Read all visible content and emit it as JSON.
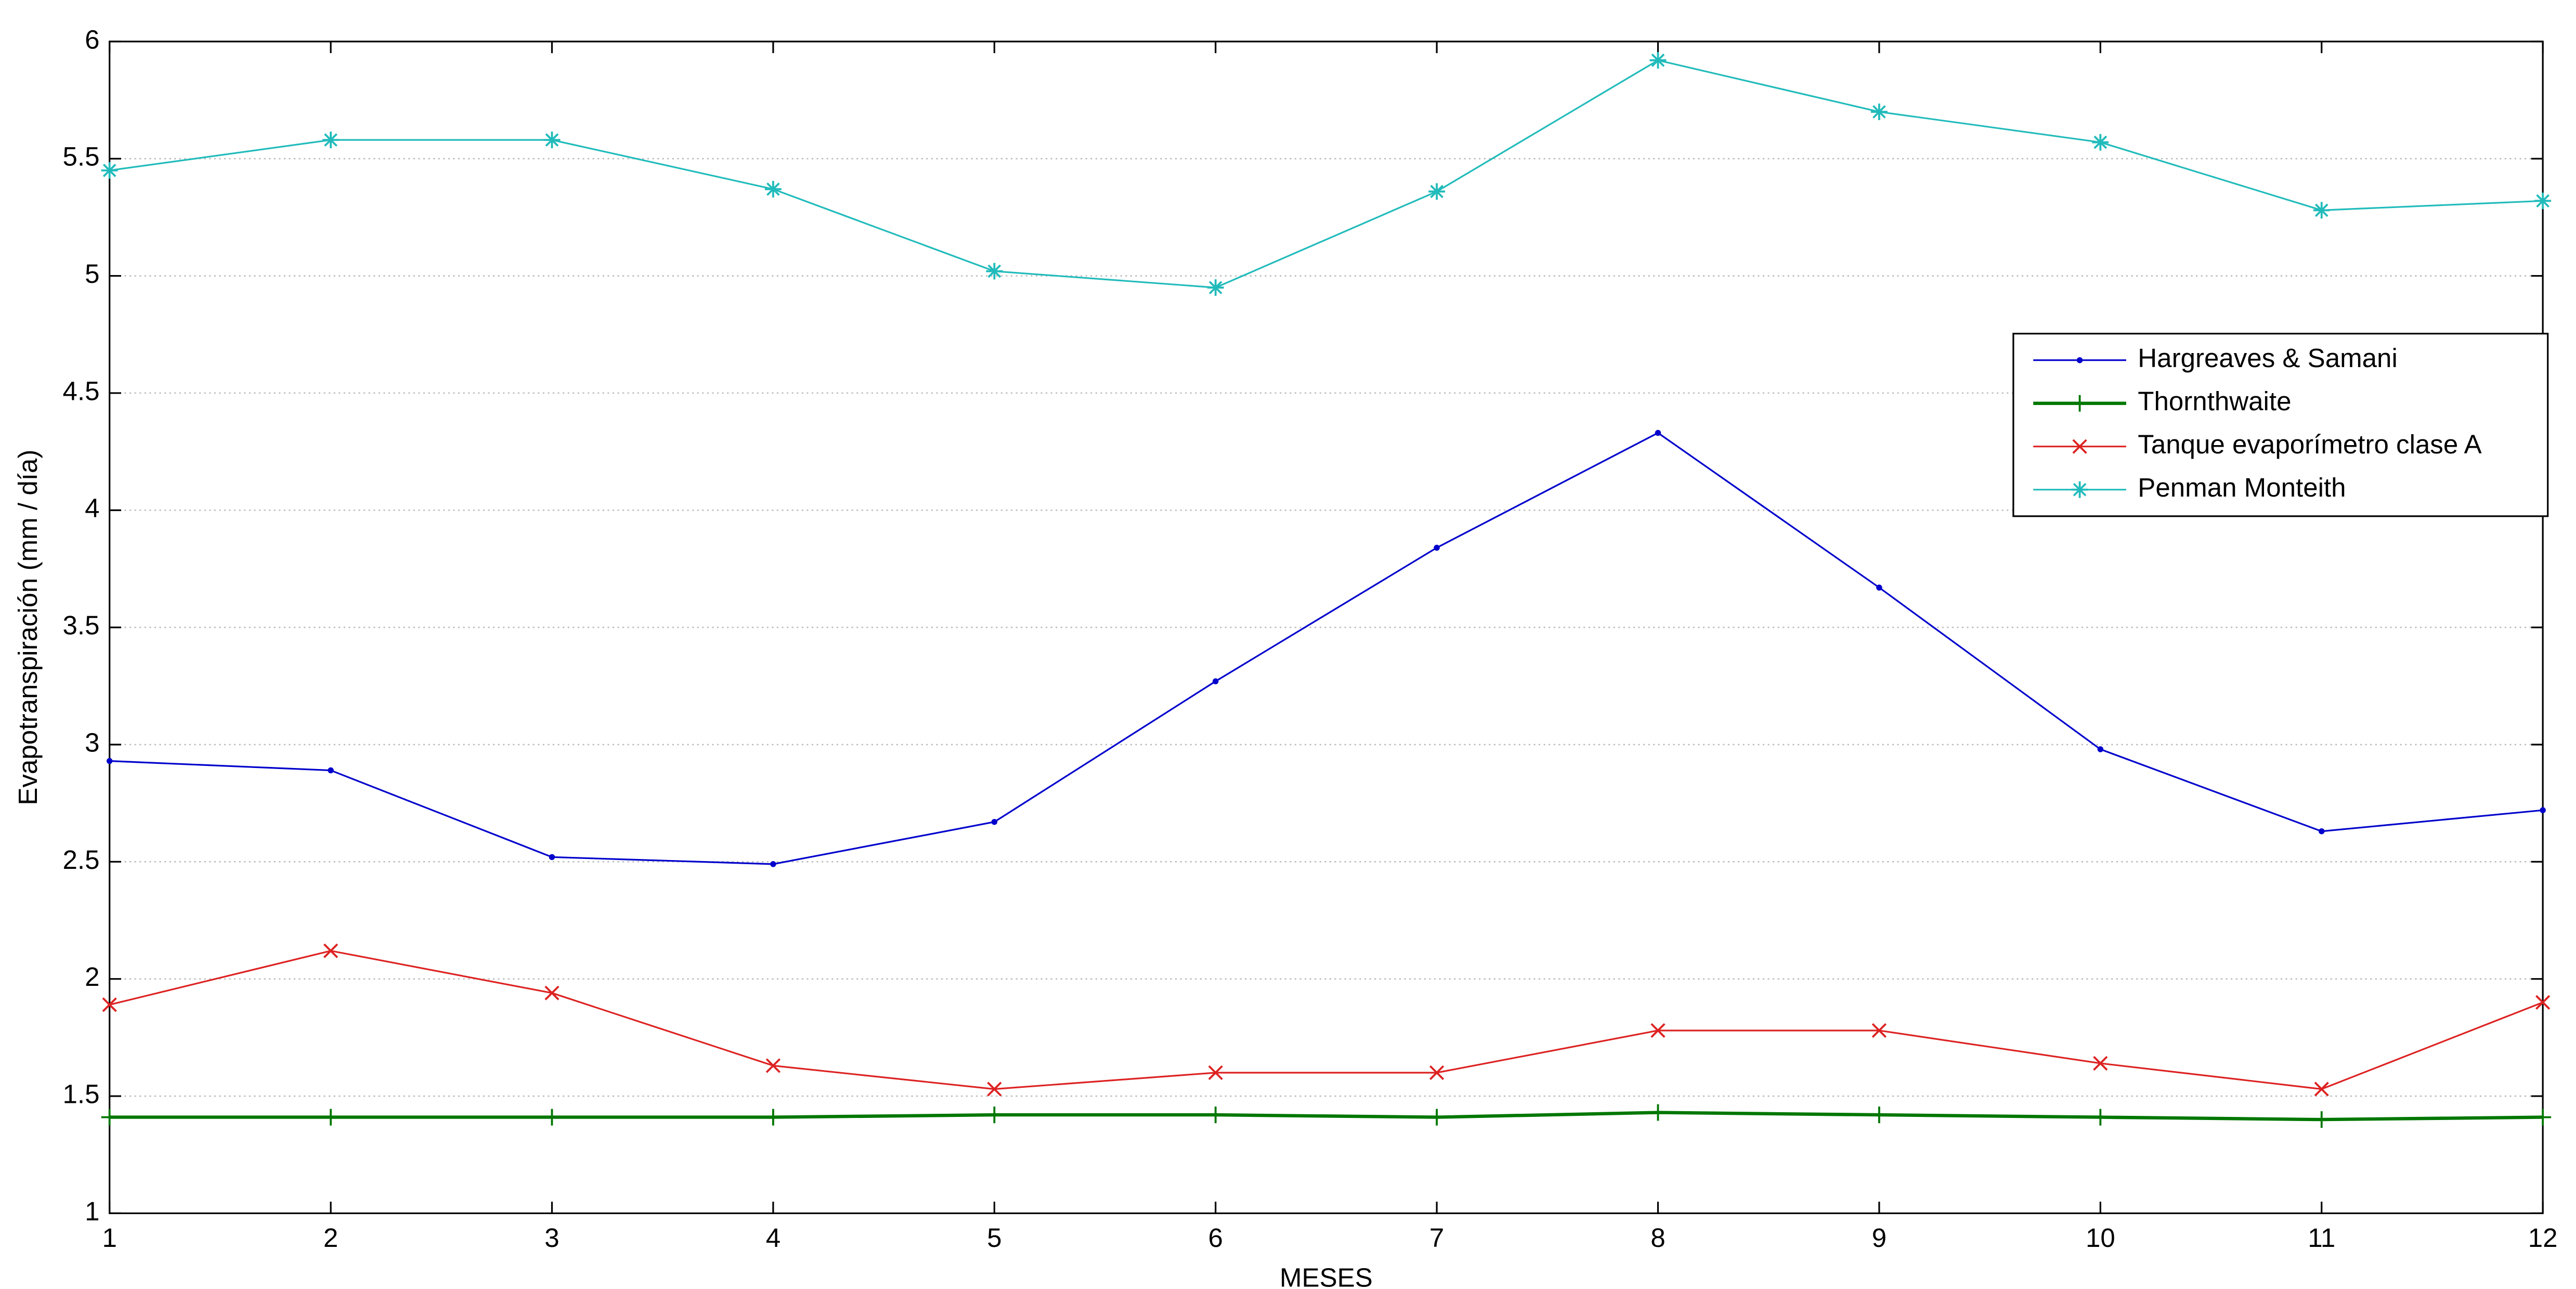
{
  "chart_data": {
    "type": "line",
    "x_label": "MESES",
    "y_label": "Evapotranspiración (mm / día)",
    "x": [
      1,
      2,
      3,
      4,
      5,
      6,
      7,
      8,
      9,
      10,
      11,
      12
    ],
    "xlim": [
      1,
      12
    ],
    "xticks": [
      1,
      2,
      3,
      4,
      5,
      6,
      7,
      8,
      9,
      10,
      11,
      12
    ],
    "ylim": [
      1,
      6
    ],
    "yticks": [
      1,
      1.5,
      2,
      2.5,
      3,
      3.5,
      4,
      4.5,
      5,
      5.5,
      6
    ],
    "grid": true,
    "legend": "upper-right",
    "series": [
      {
        "name": "Hargreaves & Samani",
        "color": "#0000cc",
        "marker": "dot",
        "line_width": 1,
        "values": [
          2.93,
          2.89,
          2.52,
          2.49,
          2.67,
          3.27,
          3.84,
          4.33,
          3.67,
          2.98,
          2.63,
          2.72
        ]
      },
      {
        "name": "Thornthwaite",
        "color": "#007700",
        "marker": "plus",
        "line_width": 2,
        "values": [
          1.41,
          1.41,
          1.41,
          1.41,
          1.42,
          1.42,
          1.41,
          1.43,
          1.42,
          1.41,
          1.4,
          1.41
        ]
      },
      {
        "name": "Tanque evaporímetro clase A",
        "color": "#dd2222",
        "marker": "x",
        "line_width": 1,
        "values": [
          1.89,
          2.12,
          1.94,
          1.63,
          1.53,
          1.6,
          1.6,
          1.78,
          1.78,
          1.64,
          1.53,
          1.9
        ]
      },
      {
        "name": "Penman Monteith",
        "color": "#22bbbb",
        "marker": "star",
        "line_width": 1,
        "values": [
          5.45,
          5.58,
          5.58,
          5.37,
          5.02,
          4.95,
          5.36,
          5.92,
          5.7,
          5.57,
          5.28,
          5.32
        ]
      }
    ]
  }
}
